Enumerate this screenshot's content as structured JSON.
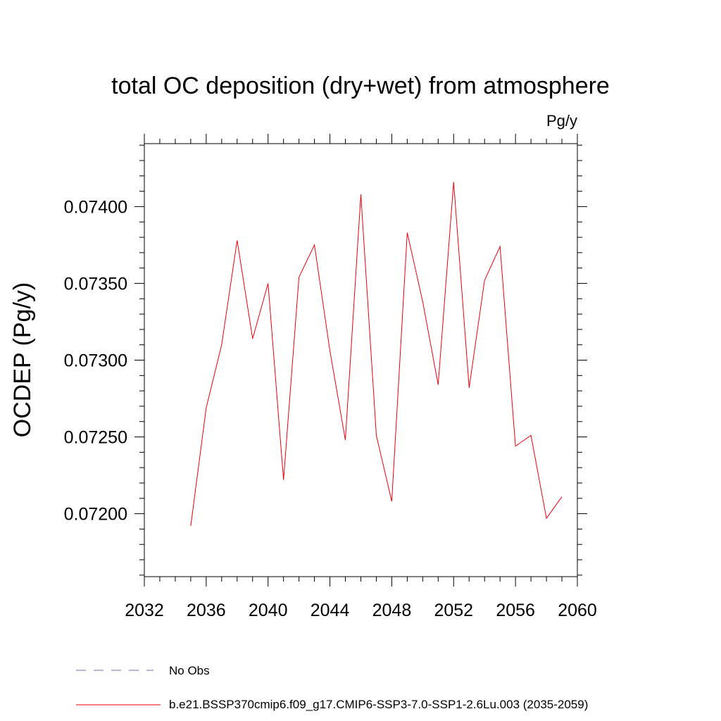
{
  "chart_data": {
    "type": "line",
    "title": "total OC deposition (dry+wet) from atmosphere",
    "units": "Pg/y",
    "ylabel": "OCDEP  (Pg/y)",
    "xlabel": "",
    "xlim": [
      2032,
      2060
    ],
    "ylim": [
      0.07159,
      0.07441
    ],
    "x_ticks": [
      2032,
      2036,
      2040,
      2044,
      2048,
      2052,
      2056,
      2060
    ],
    "x_tick_labels": [
      "2032",
      "2036",
      "2040",
      "2044",
      "2048",
      "2052",
      "2056",
      "2060"
    ],
    "y_ticks": [
      0.072,
      0.0725,
      0.073,
      0.0735,
      0.074
    ],
    "y_tick_labels": [
      "0.07200",
      "0.07250",
      "0.07300",
      "0.07350",
      "0.07400"
    ],
    "series": [
      {
        "name": "b.e21.BSSP370cmip6.f09_g17.CMIP6-SSP3-7.0-SSP1-2.6Lu.003 (2035-2059)",
        "color": "#e8000b",
        "style": "solid",
        "x": [
          2035,
          2036,
          2037,
          2038,
          2039,
          2040,
          2041,
          2042,
          2043,
          2044,
          2045,
          2046,
          2047,
          2048,
          2049,
          2050,
          2051,
          2052,
          2053,
          2054,
          2055,
          2056,
          2057,
          2058,
          2059
        ],
        "y": [
          0.07192,
          0.07269,
          0.0731,
          0.07378,
          0.07314,
          0.0735,
          0.07222,
          0.07354,
          0.07375,
          0.07306,
          0.07248,
          0.07408,
          0.07251,
          0.07208,
          0.07383,
          0.07338,
          0.07284,
          0.07416,
          0.07282,
          0.07352,
          0.07374,
          0.07244,
          0.07251,
          0.07197,
          0.07211
        ]
      }
    ],
    "legend": [
      {
        "label": "No Obs",
        "color": "#6a6aa8",
        "style": "dashed"
      },
      {
        "label": "b.e21.BSSP370cmip6.f09_g17.CMIP6-SSP3-7.0-SSP1-2.6Lu.003 (2035-2059)",
        "color": "#e8000b",
        "style": "solid"
      }
    ]
  }
}
